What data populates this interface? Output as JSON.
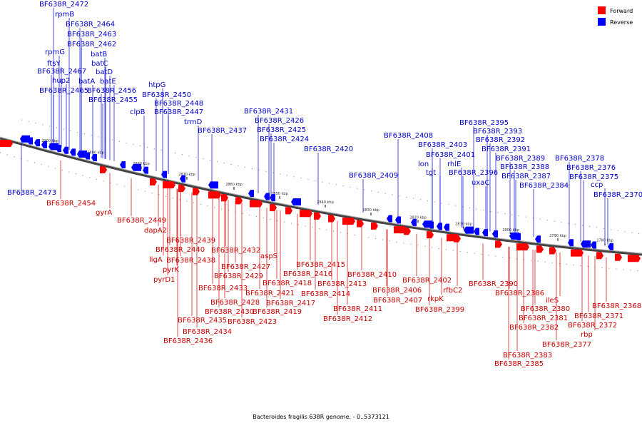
{
  "caption": "Bacteroides fragilis 638R genome. - 0..5373121",
  "legend": {
    "forward": {
      "label": "Forward",
      "color": "#ff0000"
    },
    "reverse": {
      "label": "Reverse",
      "color": "#0000ff"
    }
  },
  "colors": {
    "backbone": "#555555",
    "label_forward": "#cc0000",
    "label_reverse": "#0000cc"
  },
  "ticks": [
    "2900 kbp",
    "2890 kbp",
    "2880 kbp",
    "2870 kbp",
    "2860 kbp",
    "2850 kbp",
    "2840 kbp",
    "2830 kbp",
    "2820 kbp",
    "2810 kbp",
    "2800 kbp",
    "2790 kbp",
    "2780 kbp"
  ],
  "genes_reverse": [
    "BF638R_2472",
    "rpmB",
    "BF638R_2464",
    "BF638R_2463",
    "BF638R_2462",
    "rpmG",
    "batB",
    "ftsY",
    "batC",
    "BF638R_2467",
    "batD",
    "hup2",
    "batA",
    "batE",
    "BF638R_2465",
    "BF638R_2456",
    "BF638R_2455",
    "htpG",
    "BF638R_2450",
    "clpB",
    "BF638R_2448",
    "BF638R_2447",
    "trmD",
    "BF638R_2437",
    "BF638R_2431",
    "BF638R_2426",
    "BF638R_2425",
    "BF638R_2424",
    "BF638R_2420",
    "BF638R_2473",
    "BF638R_2408",
    "BF638R_2409",
    "BF638R_2403",
    "BF638R_2401",
    "lon",
    "tgt",
    "rhlE",
    "BF638R_2396",
    "uxaC",
    "BF638R_2395",
    "BF638R_2393",
    "BF638R_2392",
    "BF638R_2391",
    "BF638R_2389",
    "BF638R_2388",
    "BF638R_2387",
    "BF638R_2384",
    "BF638R_2378",
    "BF638R_2376",
    "BF638R_2375",
    "ccp",
    "BF638R_2370"
  ],
  "genes_forward": [
    "BF638R_2454",
    "gyrA",
    "BF638R_2449",
    "dapA2",
    "BF638R_2439",
    "BF638R_2440",
    "ligA",
    "BF638R_2438",
    "pyrK",
    "pyrD1",
    "BF638R_2432",
    "aspS",
    "BF638R_2427",
    "BF638R_2429",
    "BF638R_2433",
    "BF638R_2428",
    "BF638R_2430",
    "BF638R_2435",
    "BF638R_2434",
    "BF638R_2436",
    "BF638R_2423",
    "BF638R_2419",
    "BF638R_2417",
    "BF638R_2421",
    "BF638R_2418",
    "BF638R_2416",
    "BF638R_2415",
    "BF638R_2414",
    "BF638R_2413",
    "BF638R_2411",
    "BF638R_2412",
    "BF638R_2410",
    "BF638R_2406",
    "BF638R_2407",
    "BF638R_2402",
    "rkpK",
    "rfbC2",
    "BF638R_2399",
    "BF638R_2390",
    "BF638R_2386",
    "ileS",
    "BF638R_2380",
    "BF638R_2381",
    "BF638R_2382",
    "BF638R_2383",
    "BF638R_2385",
    "BF638R_2368",
    "BF638R_2371",
    "BF638R_2372",
    "rbp",
    "BF638R_2377"
  ]
}
